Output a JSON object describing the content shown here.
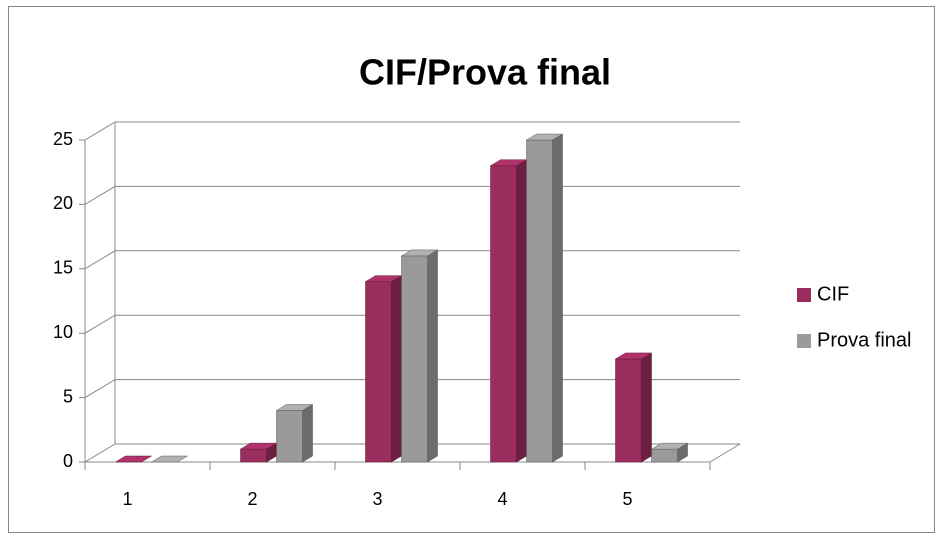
{
  "chart_data": {
    "type": "bar",
    "title": "CIF/Prova final",
    "categories": [
      "1",
      "2",
      "3",
      "4",
      "5"
    ],
    "series": [
      {
        "name": "CIF",
        "color": "#9b2c5e",
        "values": [
          0,
          1,
          14,
          23,
          8
        ]
      },
      {
        "name": "Prova final",
        "color": "#9a9a9a",
        "values": [
          0,
          4,
          16,
          25,
          1
        ]
      }
    ],
    "ylim": [
      0,
      25
    ],
    "yticks": [
      0,
      5,
      10,
      15,
      20,
      25
    ],
    "grid": true,
    "legend": "right"
  }
}
